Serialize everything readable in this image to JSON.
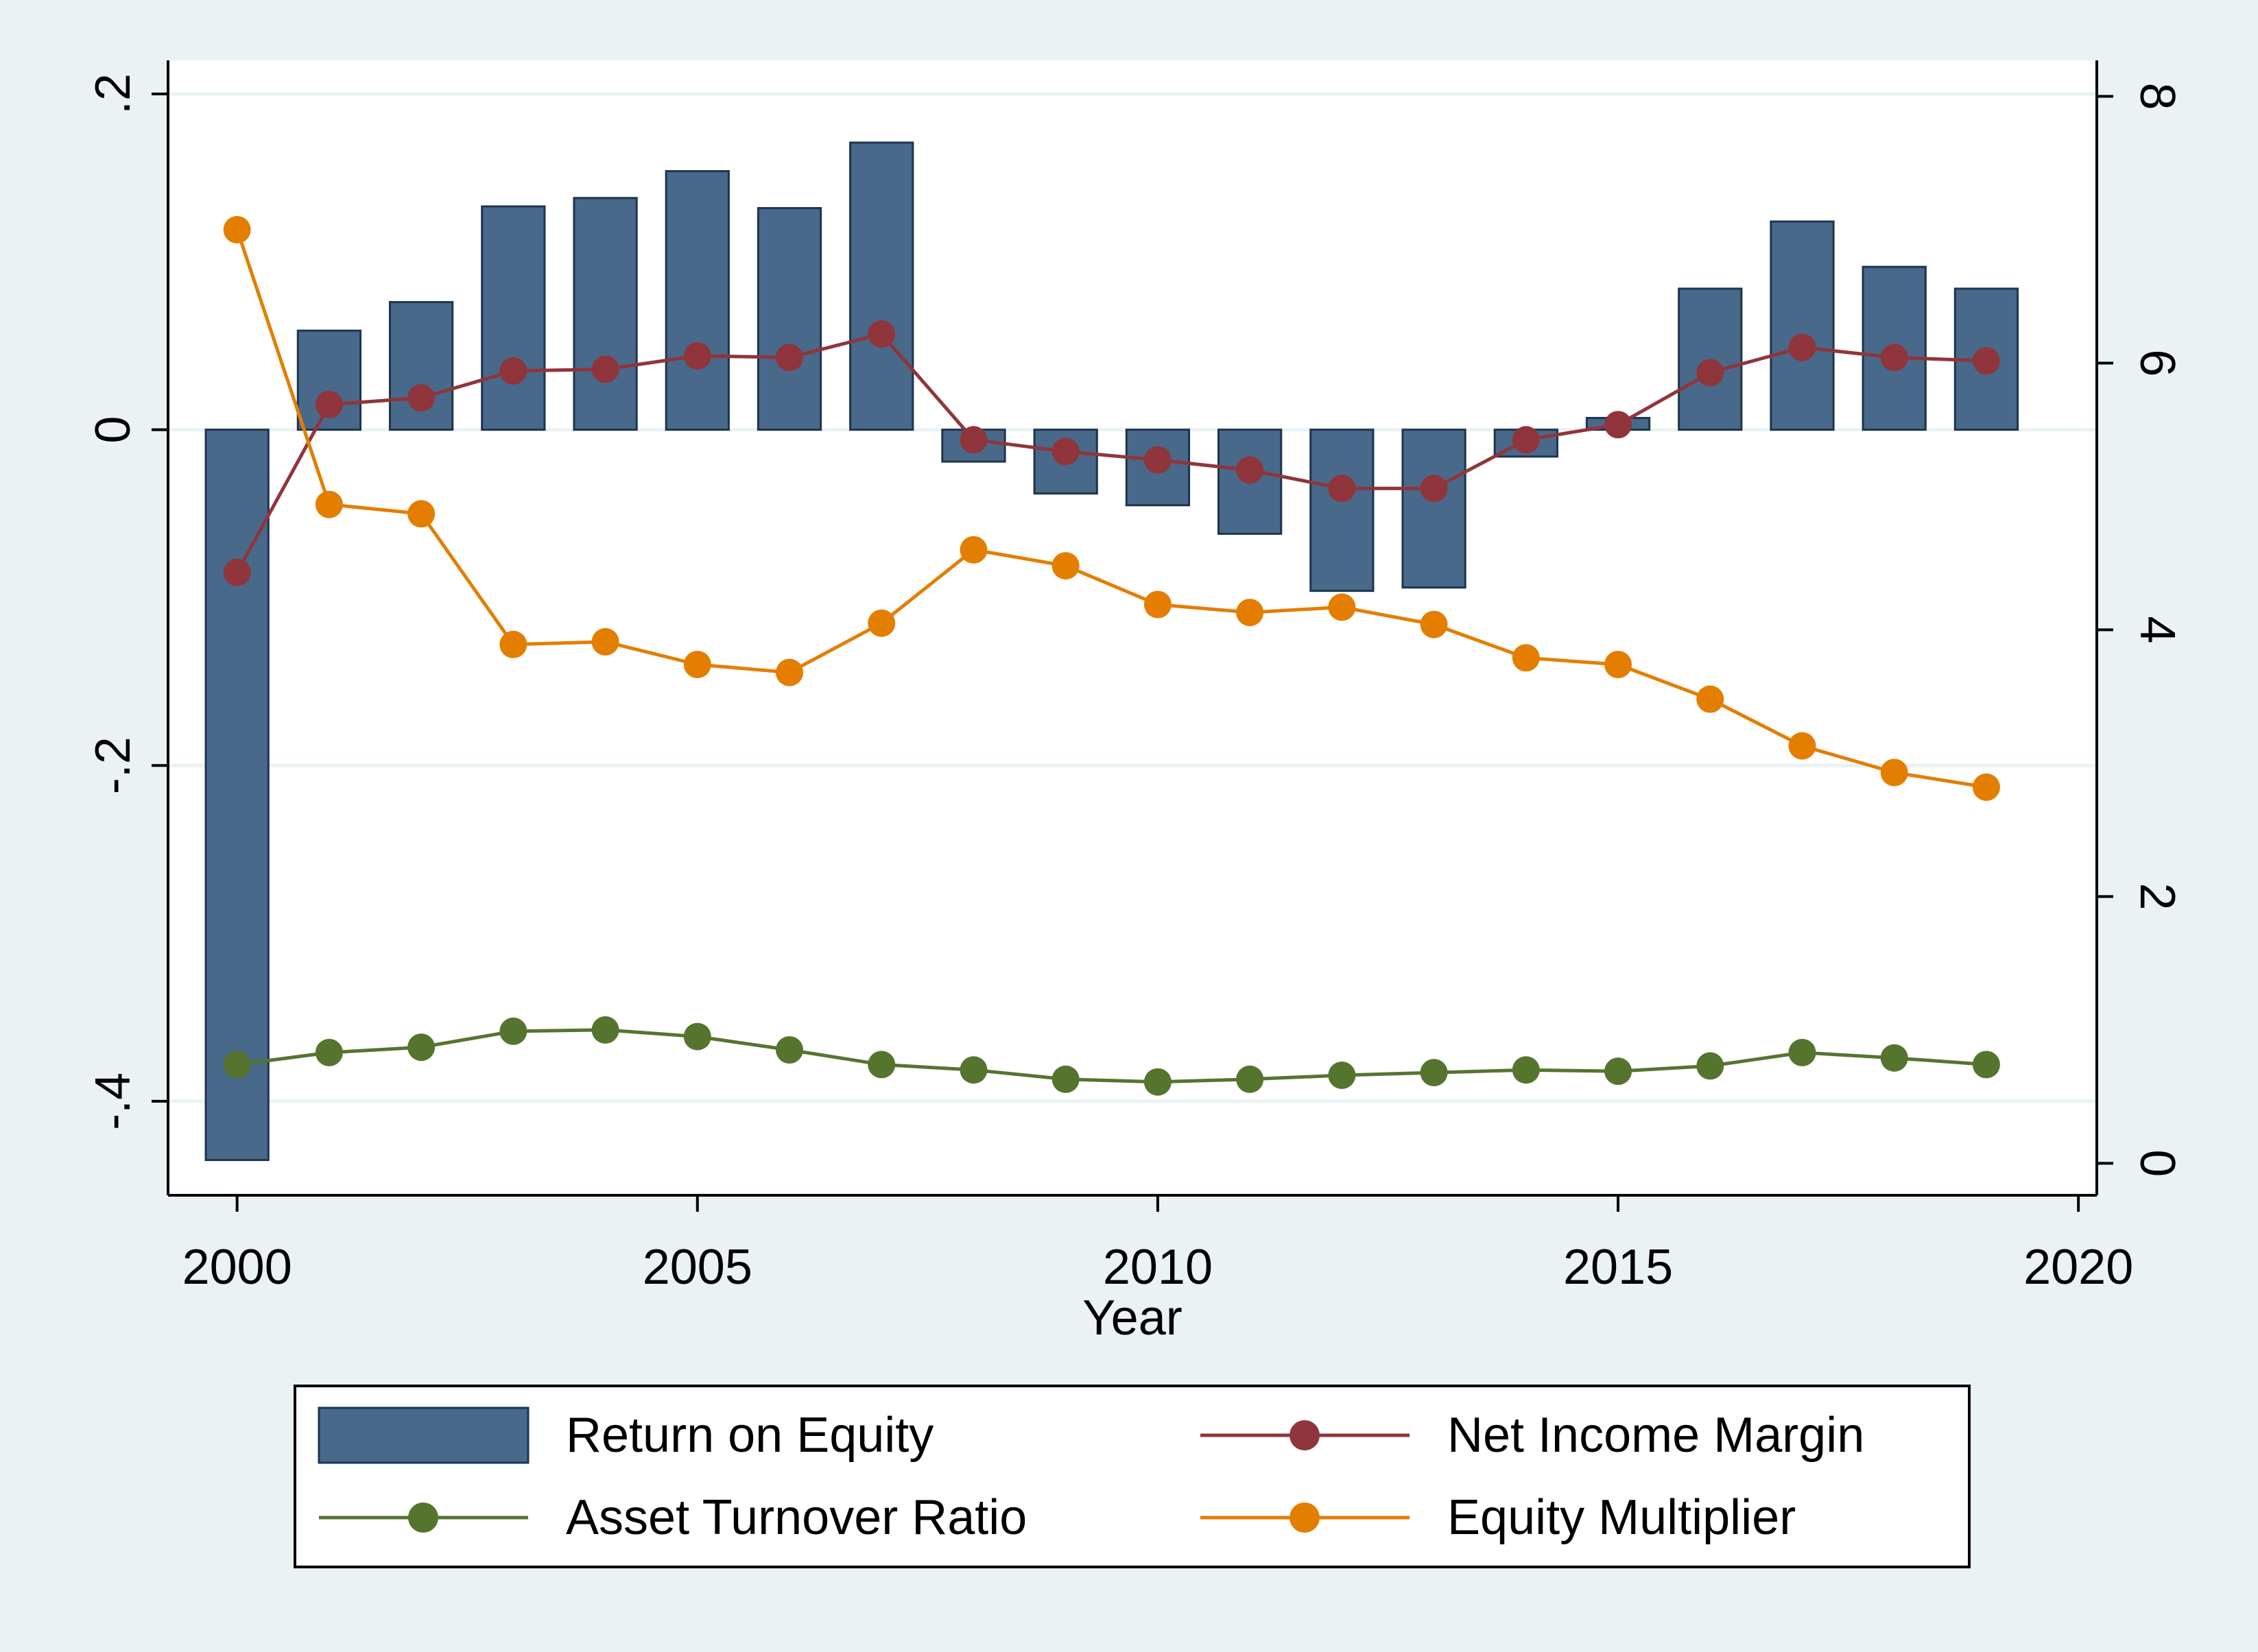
{
  "chart_data": {
    "type": "bar+line",
    "title": "",
    "xlabel": "Year",
    "x_ticks": [
      2000,
      2005,
      2010,
      2015,
      2020
    ],
    "xlim": [
      1999.25,
      2020.2
    ],
    "y_left": {
      "ticks": [
        -0.4,
        -0.2,
        0,
        0.2
      ],
      "tick_labels": [
        "-.4",
        "-.2",
        "0",
        ".2"
      ],
      "lim": [
        -0.456,
        0.22
      ]
    },
    "y_right": {
      "ticks": [
        0,
        2,
        4,
        6,
        8
      ],
      "tick_labels": [
        "0",
        "2",
        "4",
        "6",
        "8"
      ],
      "lim": [
        -0.24,
        8.27
      ]
    },
    "grid": true,
    "legend_placement": "bottom",
    "x": [
      2000,
      2001,
      2002,
      2003,
      2004,
      2005,
      2006,
      2007,
      2008,
      2009,
      2010,
      2011,
      2012,
      2013,
      2014,
      2015,
      2016,
      2017,
      2018,
      2019
    ],
    "series": [
      {
        "name": "Return on Equity",
        "kind": "bar",
        "axis": "left",
        "color": "#48698a",
        "values": [
          -0.435,
          0.059,
          0.076,
          0.133,
          0.138,
          0.154,
          0.132,
          0.171,
          -0.019,
          -0.038,
          -0.045,
          -0.062,
          -0.096,
          -0.094,
          -0.016,
          0.007,
          0.084,
          0.124,
          0.097,
          0.084
        ]
      },
      {
        "name": "Net Income Margin",
        "kind": "line",
        "axis": "left",
        "color": "#90353b",
        "values": [
          -0.085,
          0.015,
          0.019,
          0.035,
          0.036,
          0.044,
          0.043,
          0.057,
          -0.006,
          -0.013,
          -0.018,
          -0.024,
          -0.035,
          -0.035,
          -0.006,
          0.003,
          0.034,
          0.049,
          0.043,
          0.041
        ]
      },
      {
        "name": "Asset Turnover Ratio",
        "kind": "line",
        "axis": "right",
        "color": "#55752f",
        "values": [
          0.74,
          0.83,
          0.87,
          0.99,
          1.0,
          0.95,
          0.85,
          0.74,
          0.7,
          0.63,
          0.61,
          0.63,
          0.66,
          0.68,
          0.7,
          0.69,
          0.73,
          0.83,
          0.79,
          0.74
        ]
      },
      {
        "name": "Equity Multiplier",
        "kind": "line",
        "axis": "right",
        "color": "#e37e00",
        "values": [
          7.0,
          4.94,
          4.87,
          3.89,
          3.91,
          3.74,
          3.68,
          4.05,
          4.6,
          4.48,
          4.19,
          4.13,
          4.17,
          4.04,
          3.79,
          3.74,
          3.48,
          3.13,
          2.93,
          2.82
        ]
      }
    ]
  },
  "legend": {
    "items": [
      {
        "label": "Return on Equity",
        "kind": "bar",
        "color": "#48698a"
      },
      {
        "label": "Net Income Margin",
        "kind": "line",
        "color": "#90353b"
      },
      {
        "label": "Asset Turnover Ratio",
        "kind": "line",
        "color": "#55752f"
      },
      {
        "label": "Equity Multiplier",
        "kind": "line",
        "color": "#e37e00"
      }
    ]
  }
}
